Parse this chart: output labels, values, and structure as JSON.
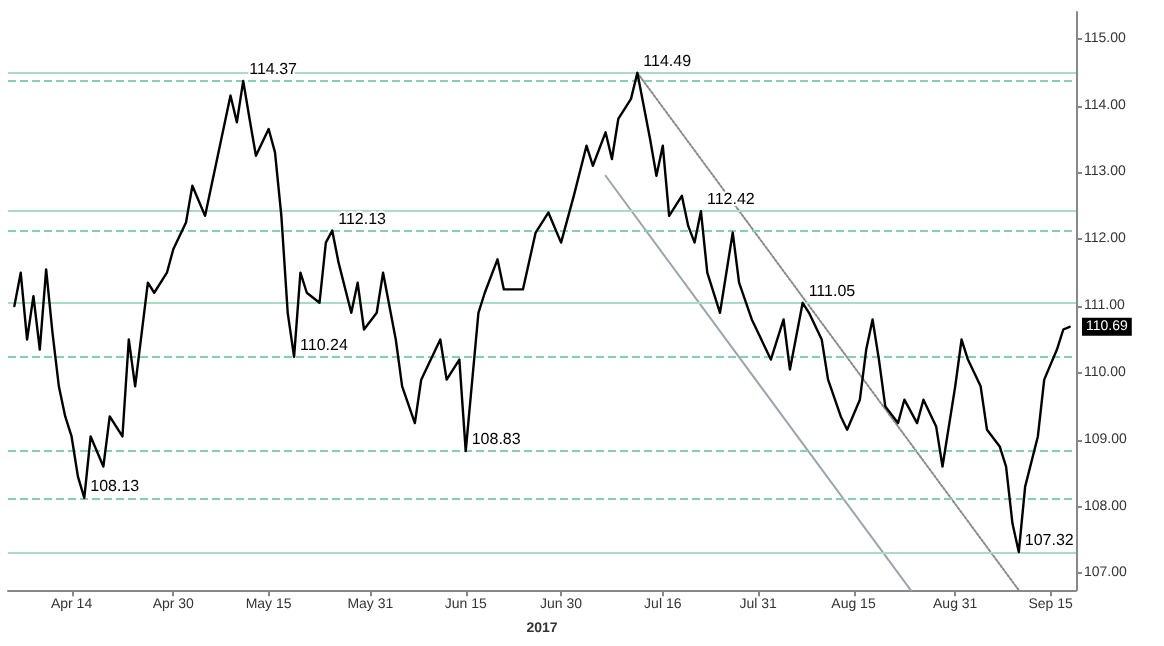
{
  "chart_data": {
    "type": "line",
    "xlabel": "2017",
    "marker": "none",
    "grid": false,
    "xlim": [
      "2017-04-04",
      "2017-09-19"
    ],
    "ylim": [
      106.75,
      115.4
    ],
    "xticks": [
      {
        "value": "2017-04-14",
        "label": "Apr 14"
      },
      {
        "value": "2017-04-30",
        "label": "Apr 30"
      },
      {
        "value": "2017-05-15",
        "label": "May 15"
      },
      {
        "value": "2017-05-31",
        "label": "May 31"
      },
      {
        "value": "2017-06-15",
        "label": "Jun 15"
      },
      {
        "value": "2017-06-30",
        "label": "Jun 30"
      },
      {
        "value": "2017-07-16",
        "label": "Jul 16"
      },
      {
        "value": "2017-07-31",
        "label": "Jul 31"
      },
      {
        "value": "2017-08-15",
        "label": "Aug 15"
      },
      {
        "value": "2017-08-31",
        "label": "Aug 31"
      },
      {
        "value": "2017-09-15",
        "label": "Sep 15"
      }
    ],
    "yticks": [
      {
        "value": 107,
        "label": "107.00"
      },
      {
        "value": 108,
        "label": "108.00"
      },
      {
        "value": 109,
        "label": "109.00"
      },
      {
        "value": 110,
        "label": "110.00"
      },
      {
        "value": 111,
        "label": "111.00"
      },
      {
        "value": 112,
        "label": "112.00"
      },
      {
        "value": 113,
        "label": "113.00"
      },
      {
        "value": 114,
        "label": "114.00"
      },
      {
        "value": 115,
        "label": "115.00"
      }
    ],
    "series": [
      {
        "color": "#000000",
        "line_style": "solid",
        "x": [
          "2017-04-05",
          "2017-04-06",
          "2017-04-07",
          "2017-04-08",
          "2017-04-09",
          "2017-04-10",
          "2017-04-11",
          "2017-04-12",
          "2017-04-13",
          "2017-04-14",
          "2017-04-15",
          "2017-04-16",
          "2017-04-17",
          "2017-04-19",
          "2017-04-20",
          "2017-04-22",
          "2017-04-23",
          "2017-04-24",
          "2017-04-26",
          "2017-04-27",
          "2017-04-29",
          "2017-04-30",
          "2017-05-02",
          "2017-05-03",
          "2017-05-05",
          "2017-05-06",
          "2017-05-07",
          "2017-05-09",
          "2017-05-10",
          "2017-05-11",
          "2017-05-12",
          "2017-05-13",
          "2017-05-15",
          "2017-05-16",
          "2017-05-17",
          "2017-05-18",
          "2017-05-19",
          "2017-05-20",
          "2017-05-21",
          "2017-05-23",
          "2017-05-24",
          "2017-05-25",
          "2017-05-26",
          "2017-05-28",
          "2017-05-29",
          "2017-05-30",
          "2017-06-01",
          "2017-06-02",
          "2017-06-04",
          "2017-06-05",
          "2017-06-07",
          "2017-06-08",
          "2017-06-11",
          "2017-06-12",
          "2017-06-14",
          "2017-06-15",
          "2017-06-17",
          "2017-06-18",
          "2017-06-20",
          "2017-06-21",
          "2017-06-24",
          "2017-06-26",
          "2017-06-28",
          "2017-06-30",
          "2017-07-02",
          "2017-07-04",
          "2017-07-05",
          "2017-07-07",
          "2017-07-08",
          "2017-07-09",
          "2017-07-11",
          "2017-07-12",
          "2017-07-14",
          "2017-07-15",
          "2017-07-16",
          "2017-07-17",
          "2017-07-19",
          "2017-07-20",
          "2017-07-21",
          "2017-07-22",
          "2017-07-23",
          "2017-07-25",
          "2017-07-26",
          "2017-07-27",
          "2017-07-28",
          "2017-07-30",
          "2017-07-31",
          "2017-08-02",
          "2017-08-04",
          "2017-08-05",
          "2017-08-07",
          "2017-08-08",
          "2017-08-10",
          "2017-08-11",
          "2017-08-13",
          "2017-08-14",
          "2017-08-16",
          "2017-08-17",
          "2017-08-18",
          "2017-08-19",
          "2017-08-20",
          "2017-08-22",
          "2017-08-23",
          "2017-08-25",
          "2017-08-26",
          "2017-08-28",
          "2017-08-29",
          "2017-08-31",
          "2017-09-01",
          "2017-09-02",
          "2017-09-04",
          "2017-09-05",
          "2017-09-07",
          "2017-09-08",
          "2017-09-09",
          "2017-09-10",
          "2017-09-11",
          "2017-09-13",
          "2017-09-14",
          "2017-09-16",
          "2017-09-17",
          "2017-09-18"
        ],
        "values": [
          111.0,
          111.5,
          110.5,
          111.15,
          110.35,
          111.55,
          110.6,
          109.8,
          109.35,
          109.05,
          108.45,
          108.13,
          109.05,
          108.6,
          109.35,
          109.05,
          110.5,
          109.8,
          111.35,
          111.2,
          111.5,
          111.85,
          112.25,
          112.8,
          112.35,
          112.8,
          113.25,
          114.15,
          113.75,
          114.37,
          113.8,
          113.25,
          113.65,
          113.3,
          112.35,
          110.9,
          110.24,
          111.5,
          111.2,
          111.05,
          111.95,
          112.13,
          111.65,
          110.9,
          111.35,
          110.65,
          110.9,
          111.5,
          110.5,
          109.8,
          109.25,
          109.9,
          110.5,
          109.9,
          110.2,
          108.83,
          110.9,
          111.2,
          111.7,
          111.25,
          111.25,
          112.1,
          112.4,
          111.95,
          112.65,
          113.4,
          113.1,
          113.6,
          113.2,
          113.8,
          114.1,
          114.49,
          113.5,
          112.95,
          113.4,
          112.35,
          112.65,
          112.2,
          111.95,
          112.42,
          111.5,
          110.9,
          111.5,
          112.1,
          111.35,
          110.8,
          110.6,
          110.2,
          110.8,
          110.05,
          111.05,
          110.9,
          110.5,
          109.9,
          109.35,
          109.15,
          109.6,
          110.35,
          110.8,
          110.2,
          109.5,
          109.25,
          109.6,
          109.25,
          109.6,
          109.2,
          108.6,
          109.8,
          110.5,
          110.2,
          109.8,
          109.15,
          108.9,
          108.6,
          107.75,
          107.32,
          108.3,
          109.05,
          109.9,
          110.35,
          110.65,
          110.69
        ]
      },
      {
        "type": "line",
        "color": "#9aa5ad",
        "line_style": "solid",
        "x": [
          "2017-07-07",
          "2017-08-24"
        ],
        "values": [
          112.95,
          106.75
        ]
      },
      {
        "type": "line",
        "color": "#8a8a8a",
        "line_style": "dotted",
        "x": [
          "2017-07-12",
          "2017-09-10"
        ],
        "values": [
          114.49,
          106.75
        ]
      }
    ],
    "ref_lines": [
      {
        "axis": "y",
        "value": 114.37,
        "color": "#7fd3b0",
        "line_style": "dashed"
      },
      {
        "axis": "y",
        "value": 112.13,
        "color": "#7fd3b0",
        "line_style": "dashed"
      },
      {
        "axis": "y",
        "value": 110.24,
        "color": "#7fd3b0",
        "line_style": "dashed"
      },
      {
        "axis": "y",
        "value": 108.83,
        "color": "#7fd3b0",
        "line_style": "dashed"
      },
      {
        "axis": "y",
        "value": 108.13,
        "color": "#7fd3b0",
        "line_style": "dashed"
      },
      {
        "axis": "y",
        "value": 114.49,
        "color": "#a8dcc4",
        "line_style": "solid"
      },
      {
        "axis": "y",
        "value": 112.42,
        "color": "#a8dcc4",
        "line_style": "solid"
      },
      {
        "axis": "y",
        "value": 111.05,
        "color": "#a8dcc4",
        "line_style": "solid"
      },
      {
        "axis": "y",
        "value": 107.32,
        "color": "#a8dcc4",
        "line_style": "solid"
      }
    ],
    "annotations": [
      {
        "text": "108.13",
        "x": "2017-04-16",
        "y": 108.13
      },
      {
        "text": "114.37",
        "x": "2017-05-11",
        "y": 114.37
      },
      {
        "text": "110.24",
        "x": "2017-05-19",
        "y": 110.24
      },
      {
        "text": "112.13",
        "x": "2017-05-25",
        "y": 112.13
      },
      {
        "text": "108.83",
        "x": "2017-06-15",
        "y": 108.83
      },
      {
        "text": "114.49",
        "x": "2017-07-12",
        "y": 114.49
      },
      {
        "text": "112.42",
        "x": "2017-07-22",
        "y": 112.42
      },
      {
        "text": "111.05",
        "x": "2017-08-07",
        "y": 111.05
      },
      {
        "text": "107.32",
        "x": "2017-09-10",
        "y": 107.32
      },
      {
        "text": "110.69",
        "y": 110.69
      }
    ]
  }
}
